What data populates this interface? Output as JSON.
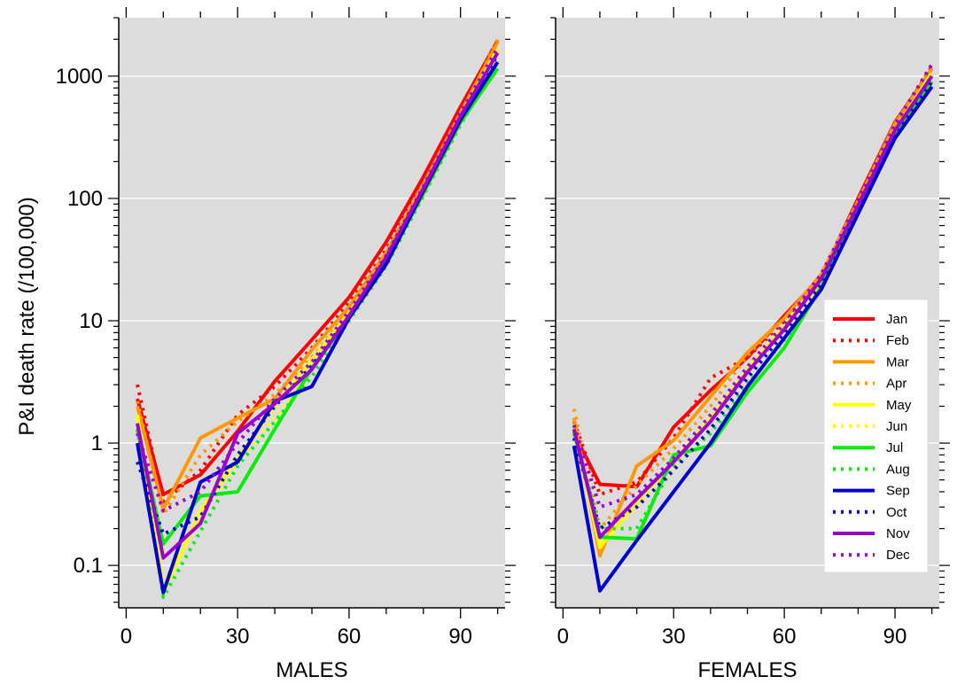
{
  "chart_data": {
    "type": "line",
    "ylabel": "P&I death rate (/100,000)",
    "yscale": "log",
    "ylim": [
      0.045,
      3000
    ],
    "xlim": [
      -2,
      102
    ],
    "xticks": [
      0,
      30,
      60,
      90
    ],
    "yticks": [
      0.1,
      1,
      10,
      100,
      1000
    ],
    "ytick_labels": [
      "0.1",
      "1",
      "10",
      "100",
      "1000"
    ],
    "grid": "horizontal",
    "legend_position": "right",
    "x": [
      3,
      10,
      20,
      30,
      40,
      50,
      60,
      70,
      80,
      90,
      100
    ],
    "panels": [
      {
        "xlabel": "MALES",
        "series": [
          {
            "name": "Jan",
            "color": "#ff0000",
            "style": "solid",
            "values": [
              2.3,
              0.38,
              0.55,
              1.25,
              3.2,
              7.0,
              15.5,
              44,
              150,
              560,
              1950
            ]
          },
          {
            "name": "Feb",
            "color": "#ff0000",
            "style": "dotted",
            "values": [
              3.0,
              0.33,
              0.6,
              1.7,
              2.9,
              6.0,
              14,
              38,
              140,
              520,
              1800
            ]
          },
          {
            "name": "Mar",
            "color": "#ff9900",
            "style": "solid",
            "values": [
              2.0,
              0.29,
              1.1,
              1.6,
              2.3,
              5.8,
              13,
              36,
              130,
              500,
              1900
            ]
          },
          {
            "name": "Apr",
            "color": "#ff9900",
            "style": "dotted",
            "values": [
              2.2,
              0.26,
              0.8,
              1.5,
              2.5,
              5.0,
              12,
              32,
              120,
              480,
              2000
            ]
          },
          {
            "name": "May",
            "color": "#ffff00",
            "style": "solid",
            "values": [
              1.7,
              0.06,
              0.28,
              0.75,
              2.0,
              4.8,
              11.5,
              32,
              115,
              470,
              1650
            ]
          },
          {
            "name": "Jun",
            "color": "#ffff00",
            "style": "dotted",
            "values": [
              1.6,
              0.07,
              0.25,
              0.7,
              1.6,
              4.2,
              11,
              30,
              110,
              450,
              1600
            ]
          },
          {
            "name": "Jul",
            "color": "#00ee00",
            "style": "solid",
            "values": [
              1.3,
              0.15,
              0.37,
              0.4,
              1.3,
              4.1,
              10.5,
              30,
              110,
              420,
              1150
            ]
          },
          {
            "name": "Aug",
            "color": "#00ee00",
            "style": "dotted",
            "values": [
              1.3,
              0.055,
              0.19,
              0.65,
              1.5,
              3.5,
              10,
              28,
              105,
              400,
              1300
            ]
          },
          {
            "name": "Sep",
            "color": "#0000cc",
            "style": "solid",
            "values": [
              1.0,
              0.06,
              0.48,
              0.7,
              2.2,
              2.9,
              10.5,
              29,
              115,
              440,
              1300
            ]
          },
          {
            "name": "Oct",
            "color": "#0000cc",
            "style": "dotted",
            "values": [
              0.7,
              0.18,
              0.25,
              0.8,
              2.0,
              4.3,
              11,
              31,
              120,
              460,
              1500
            ]
          },
          {
            "name": "Nov",
            "color": "#9900cc",
            "style": "solid",
            "values": [
              1.45,
              0.115,
              0.22,
              1.2,
              2.1,
              4.0,
              11,
              33,
              120,
              470,
              1550
            ]
          },
          {
            "name": "Dec",
            "color": "#9900cc",
            "style": "dotted",
            "values": [
              1.2,
              0.28,
              0.4,
              1.0,
              2.3,
              4.6,
              12,
              34,
              125,
              500,
              1700
            ]
          }
        ]
      },
      {
        "xlabel": "FEMALES",
        "series": [
          {
            "name": "Jan",
            "color": "#ff0000",
            "style": "solid",
            "values": [
              1.2,
              0.46,
              0.44,
              1.35,
              2.7,
              5.0,
              11,
              23,
              100,
              420,
              1150
            ]
          },
          {
            "name": "Feb",
            "color": "#ff0000",
            "style": "dotted",
            "values": [
              1.5,
              0.38,
              0.48,
              1.1,
              3.4,
              5.0,
              10,
              22,
              95,
              400,
              1200
            ]
          },
          {
            "name": "Mar",
            "color": "#ff9900",
            "style": "solid",
            "values": [
              1.6,
              0.12,
              0.65,
              1.05,
              2.4,
              5.5,
              10.5,
              24,
              95,
              410,
              1150
            ]
          },
          {
            "name": "Apr",
            "color": "#ff9900",
            "style": "dotted",
            "values": [
              1.9,
              0.2,
              0.45,
              0.9,
              2.0,
              5.2,
              10.5,
              23,
              90,
              390,
              1100
            ]
          },
          {
            "name": "May",
            "color": "#ffff00",
            "style": "solid",
            "values": [
              1.3,
              0.14,
              0.33,
              0.7,
              1.6,
              4.0,
              9.0,
              21,
              85,
              360,
              1050
            ]
          },
          {
            "name": "Jun",
            "color": "#ffff00",
            "style": "dotted",
            "values": [
              1.25,
              0.15,
              0.3,
              0.65,
              1.5,
              3.6,
              8.5,
              20,
              82,
              350,
              1000
            ]
          },
          {
            "name": "Jul",
            "color": "#00ee00",
            "style": "solid",
            "values": [
              1.25,
              0.17,
              0.165,
              0.8,
              0.95,
              2.6,
              6.0,
              19,
              80,
              330,
              900
            ]
          },
          {
            "name": "Aug",
            "color": "#00ee00",
            "style": "dotted",
            "values": [
              1.2,
              0.2,
              0.2,
              0.65,
              1.2,
              3.0,
              7.0,
              19,
              78,
              320,
              950
            ]
          },
          {
            "name": "Sep",
            "color": "#0000cc",
            "style": "solid",
            "values": [
              0.95,
              0.062,
              0.16,
              0.4,
              1.0,
              2.9,
              7.2,
              18,
              75,
              310,
              820
            ]
          },
          {
            "name": "Oct",
            "color": "#0000cc",
            "style": "dotted",
            "values": [
              1.1,
              0.2,
              0.3,
              0.6,
              1.3,
              3.4,
              8.0,
              20,
              80,
              330,
              900
            ]
          },
          {
            "name": "Nov",
            "color": "#9900cc",
            "style": "solid",
            "values": [
              1.3,
              0.17,
              0.35,
              0.7,
              1.5,
              3.8,
              8.5,
              22,
              88,
              360,
              1000
            ]
          },
          {
            "name": "Dec",
            "color": "#9900cc",
            "style": "dotted",
            "values": [
              1.4,
              0.3,
              0.38,
              0.75,
              1.7,
              4.2,
              9.5,
              24,
              95,
              400,
              1250
            ]
          }
        ]
      }
    ]
  }
}
